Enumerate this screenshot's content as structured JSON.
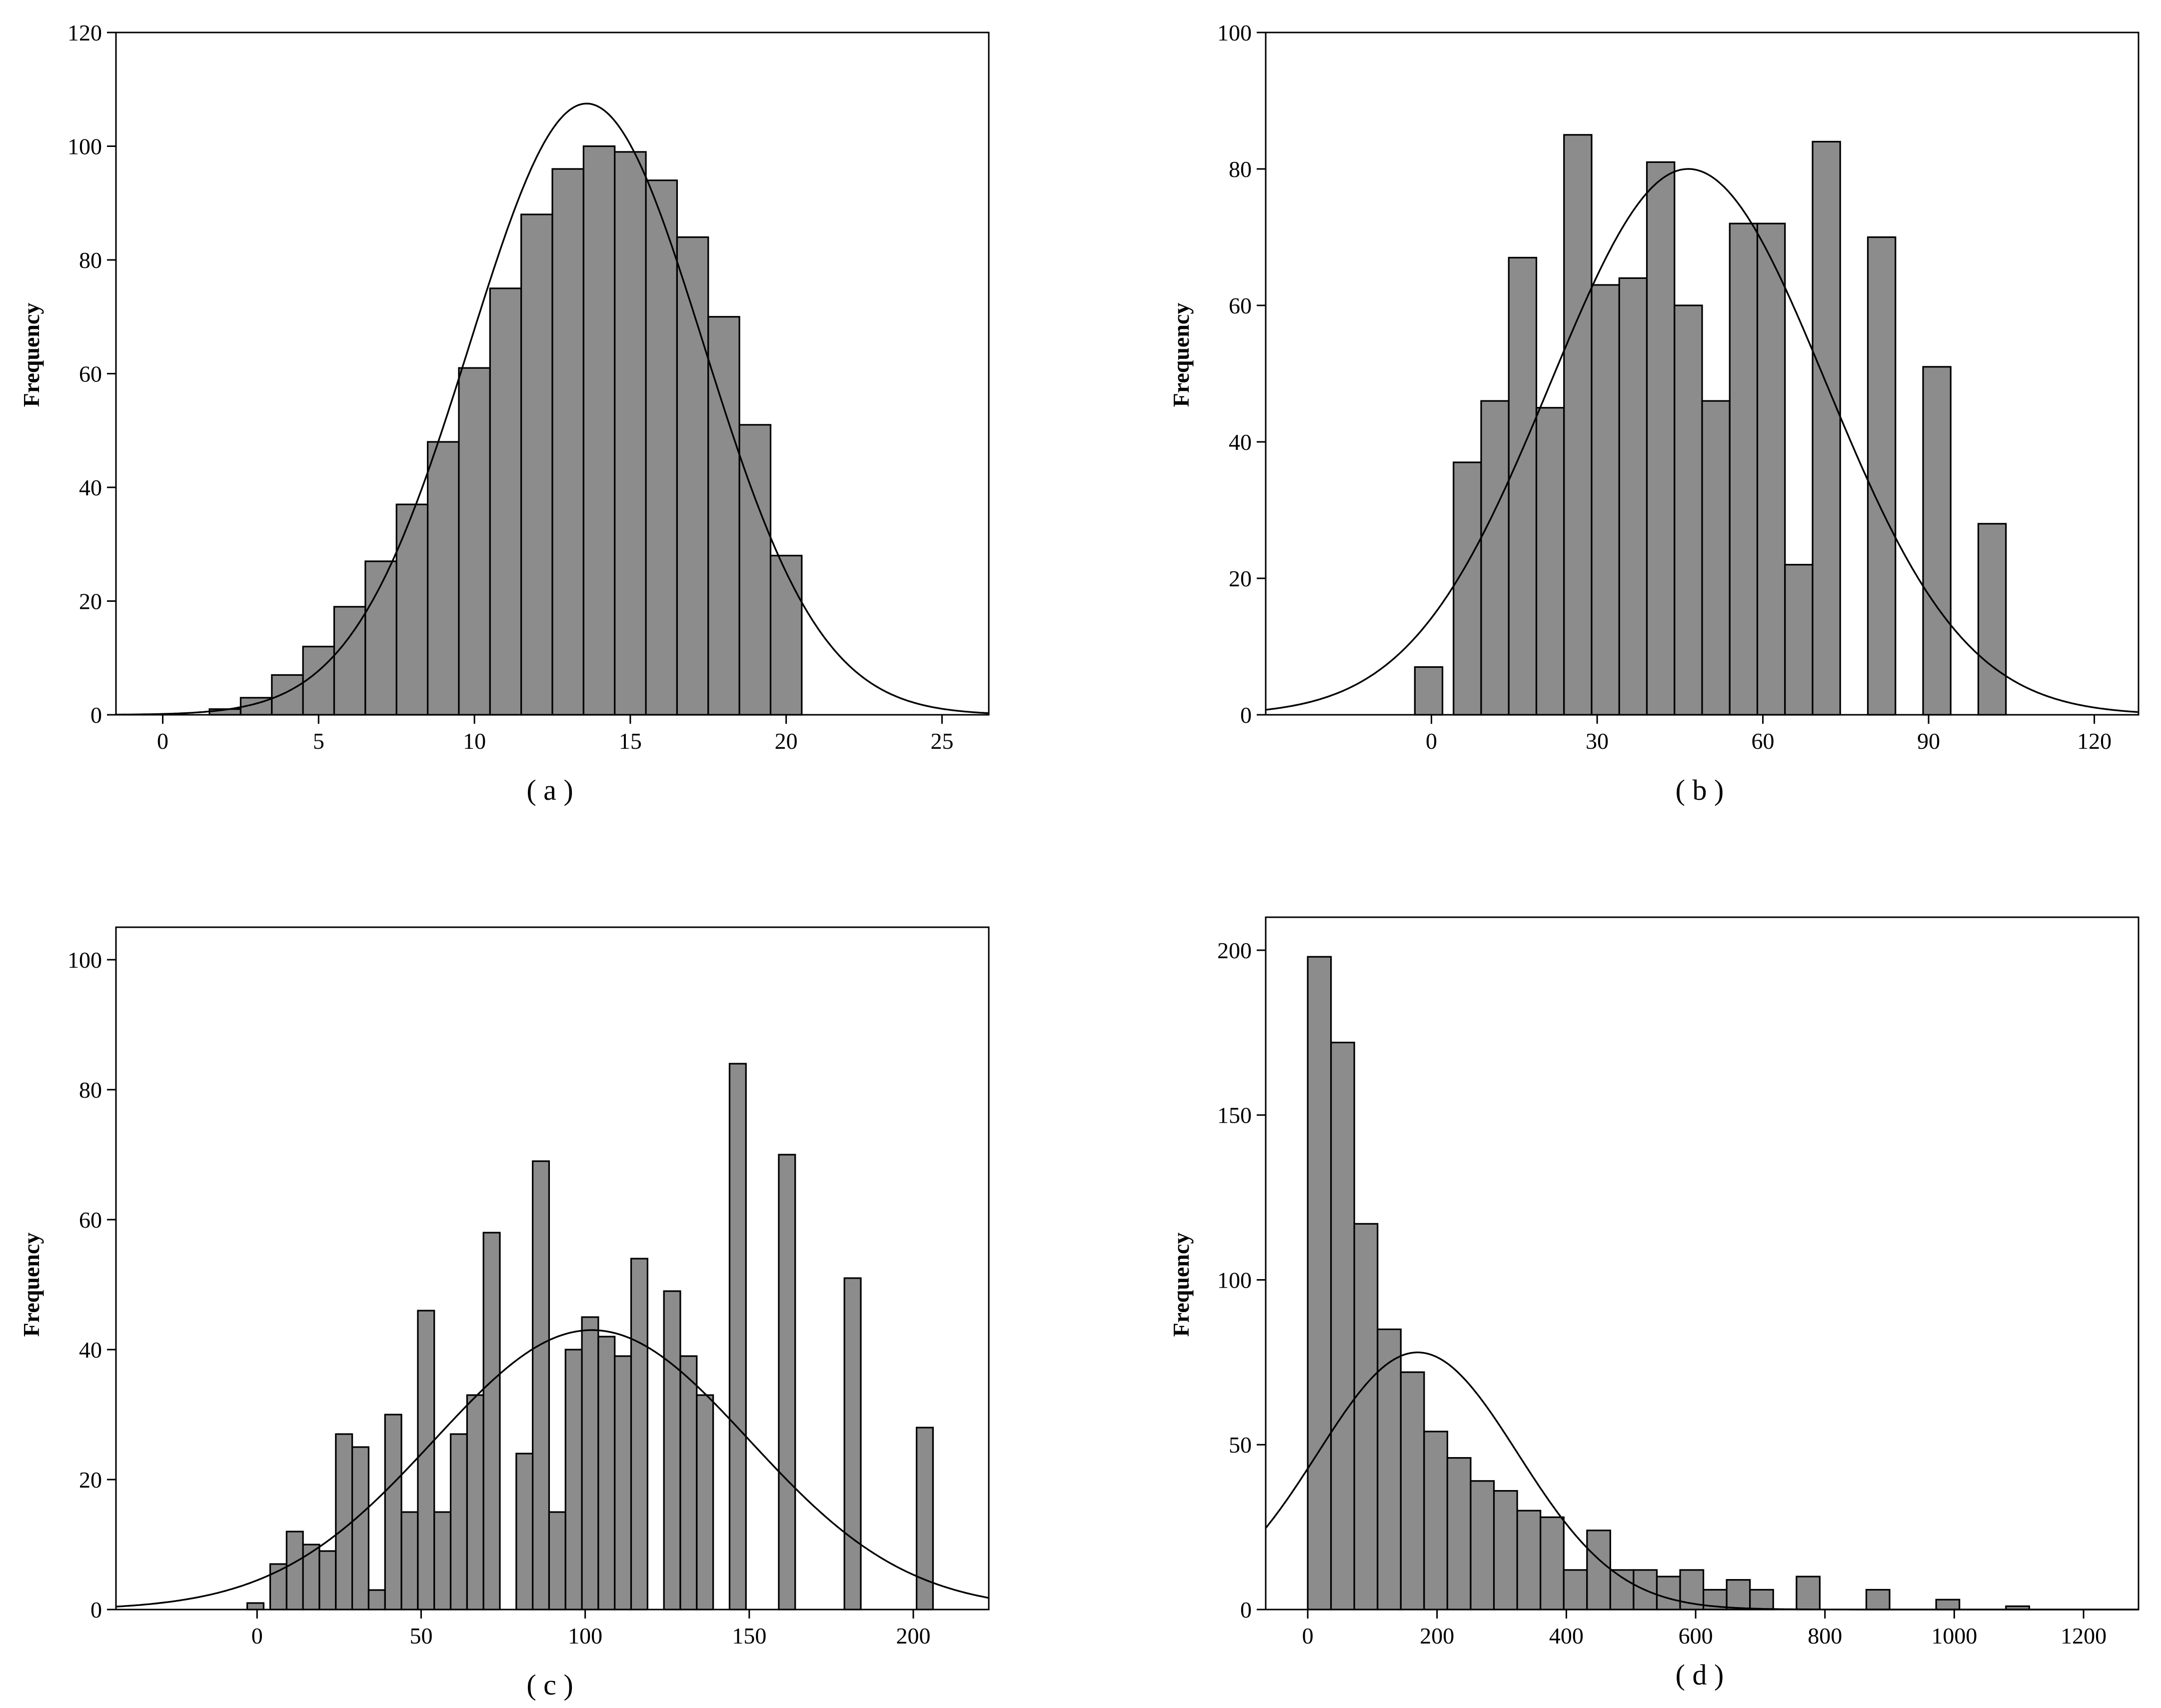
{
  "chart_data": [
    {
      "type": "bar",
      "caption": "( a )",
      "ylabel": "Frequency",
      "xlim": [
        -1.5,
        26.5
      ],
      "ylim": [
        0,
        120
      ],
      "xticks": [
        0,
        5,
        10,
        15,
        20,
        25
      ],
      "yticks": [
        0,
        20,
        40,
        60,
        80,
        100,
        120
      ],
      "bin_width": 1,
      "bins": [
        {
          "x": 1.5,
          "y": 1
        },
        {
          "x": 2.5,
          "y": 3
        },
        {
          "x": 3.5,
          "y": 7
        },
        {
          "x": 4.5,
          "y": 12
        },
        {
          "x": 5.5,
          "y": 19
        },
        {
          "x": 6.5,
          "y": 27
        },
        {
          "x": 7.5,
          "y": 37
        },
        {
          "x": 8.5,
          "y": 48
        },
        {
          "x": 9.5,
          "y": 61
        },
        {
          "x": 10.5,
          "y": 75
        },
        {
          "x": 11.5,
          "y": 88
        },
        {
          "x": 12.5,
          "y": 96
        },
        {
          "x": 13.5,
          "y": 100
        },
        {
          "x": 14.5,
          "y": 99
        },
        {
          "x": 15.5,
          "y": 94
        },
        {
          "x": 16.5,
          "y": 84
        },
        {
          "x": 17.5,
          "y": 70
        },
        {
          "x": 18.5,
          "y": 51
        },
        {
          "x": 19.5,
          "y": 28
        }
      ],
      "normal_curve": {
        "mean": 13.6,
        "sd": 3.75,
        "peak": 107.5
      }
    },
    {
      "type": "bar",
      "caption": "( b )",
      "ylabel": "Frequency",
      "xlim": [
        -30,
        128
      ],
      "ylim": [
        0,
        100
      ],
      "xticks": [
        0,
        30,
        60,
        90,
        120
      ],
      "yticks": [
        0,
        20,
        40,
        60,
        80,
        100
      ],
      "bin_width": 5,
      "bins": [
        {
          "x": -3,
          "y": 7
        },
        {
          "x": 4,
          "y": 37
        },
        {
          "x": 9,
          "y": 46
        },
        {
          "x": 14,
          "y": 67
        },
        {
          "x": 19,
          "y": 45
        },
        {
          "x": 24,
          "y": 85
        },
        {
          "x": 29,
          "y": 63
        },
        {
          "x": 34,
          "y": 64
        },
        {
          "x": 39,
          "y": 81
        },
        {
          "x": 44,
          "y": 60
        },
        {
          "x": 49,
          "y": 46
        },
        {
          "x": 54,
          "y": 72
        },
        {
          "x": 59,
          "y": 72
        },
        {
          "x": 64,
          "y": 22
        },
        {
          "x": 69,
          "y": 84
        },
        {
          "x": 79,
          "y": 70
        },
        {
          "x": 89,
          "y": 51
        },
        {
          "x": 99,
          "y": 28
        }
      ],
      "normal_curve": {
        "mean": 46.5,
        "sd": 25,
        "peak": 80
      }
    },
    {
      "type": "bar",
      "caption": "( c )",
      "ylabel": "Frequency",
      "xlim": [
        -43,
        223
      ],
      "ylim": [
        0,
        105
      ],
      "xticks": [
        0,
        50,
        100,
        150,
        200
      ],
      "yticks": [
        0,
        20,
        40,
        60,
        80,
        100
      ],
      "bin_width": 5,
      "bins": [
        {
          "x": -3,
          "y": 1
        },
        {
          "x": 4,
          "y": 7
        },
        {
          "x": 9,
          "y": 12
        },
        {
          "x": 14,
          "y": 10
        },
        {
          "x": 19,
          "y": 9
        },
        {
          "x": 24,
          "y": 27
        },
        {
          "x": 29,
          "y": 25
        },
        {
          "x": 34,
          "y": 3
        },
        {
          "x": 39,
          "y": 30
        },
        {
          "x": 44,
          "y": 15
        },
        {
          "x": 49,
          "y": 46
        },
        {
          "x": 54,
          "y": 15
        },
        {
          "x": 59,
          "y": 27
        },
        {
          "x": 64,
          "y": 33
        },
        {
          "x": 69,
          "y": 58
        },
        {
          "x": 79,
          "y": 24
        },
        {
          "x": 84,
          "y": 69
        },
        {
          "x": 89,
          "y": 15
        },
        {
          "x": 94,
          "y": 40
        },
        {
          "x": 99,
          "y": 45
        },
        {
          "x": 104,
          "y": 42
        },
        {
          "x": 109,
          "y": 39
        },
        {
          "x": 114,
          "y": 54
        },
        {
          "x": 124,
          "y": 49
        },
        {
          "x": 129,
          "y": 39
        },
        {
          "x": 134,
          "y": 33
        },
        {
          "x": 144,
          "y": 84
        },
        {
          "x": 159,
          "y": 70
        },
        {
          "x": 179,
          "y": 51
        },
        {
          "x": 201,
          "y": 28
        }
      ],
      "normal_curve": {
        "mean": 102,
        "sd": 48,
        "peak": 43
      }
    },
    {
      "type": "bar",
      "caption": "( d )",
      "ylabel": "Frequency",
      "xlim": [
        -65,
        1285
      ],
      "ylim": [
        0,
        210
      ],
      "xticks": [
        0,
        200,
        400,
        600,
        800,
        1000,
        1200
      ],
      "yticks": [
        0,
        50,
        100,
        150,
        200
      ],
      "bin_width": 36,
      "bins": [
        {
          "x": 0,
          "y": 198
        },
        {
          "x": 36,
          "y": 172
        },
        {
          "x": 72,
          "y": 117
        },
        {
          "x": 108,
          "y": 85
        },
        {
          "x": 144,
          "y": 72
        },
        {
          "x": 180,
          "y": 54
        },
        {
          "x": 216,
          "y": 46
        },
        {
          "x": 252,
          "y": 39
        },
        {
          "x": 288,
          "y": 36
        },
        {
          "x": 324,
          "y": 30
        },
        {
          "x": 360,
          "y": 28
        },
        {
          "x": 396,
          "y": 12
        },
        {
          "x": 432,
          "y": 24
        },
        {
          "x": 468,
          "y": 12
        },
        {
          "x": 504,
          "y": 12
        },
        {
          "x": 540,
          "y": 10
        },
        {
          "x": 576,
          "y": 12
        },
        {
          "x": 612,
          "y": 6
        },
        {
          "x": 648,
          "y": 9
        },
        {
          "x": 684,
          "y": 6
        },
        {
          "x": 756,
          "y": 10
        },
        {
          "x": 864,
          "y": 6
        },
        {
          "x": 972,
          "y": 3
        },
        {
          "x": 1080,
          "y": 1
        }
      ],
      "normal_curve": {
        "mean": 170,
        "sd": 155,
        "peak": 78
      }
    }
  ]
}
